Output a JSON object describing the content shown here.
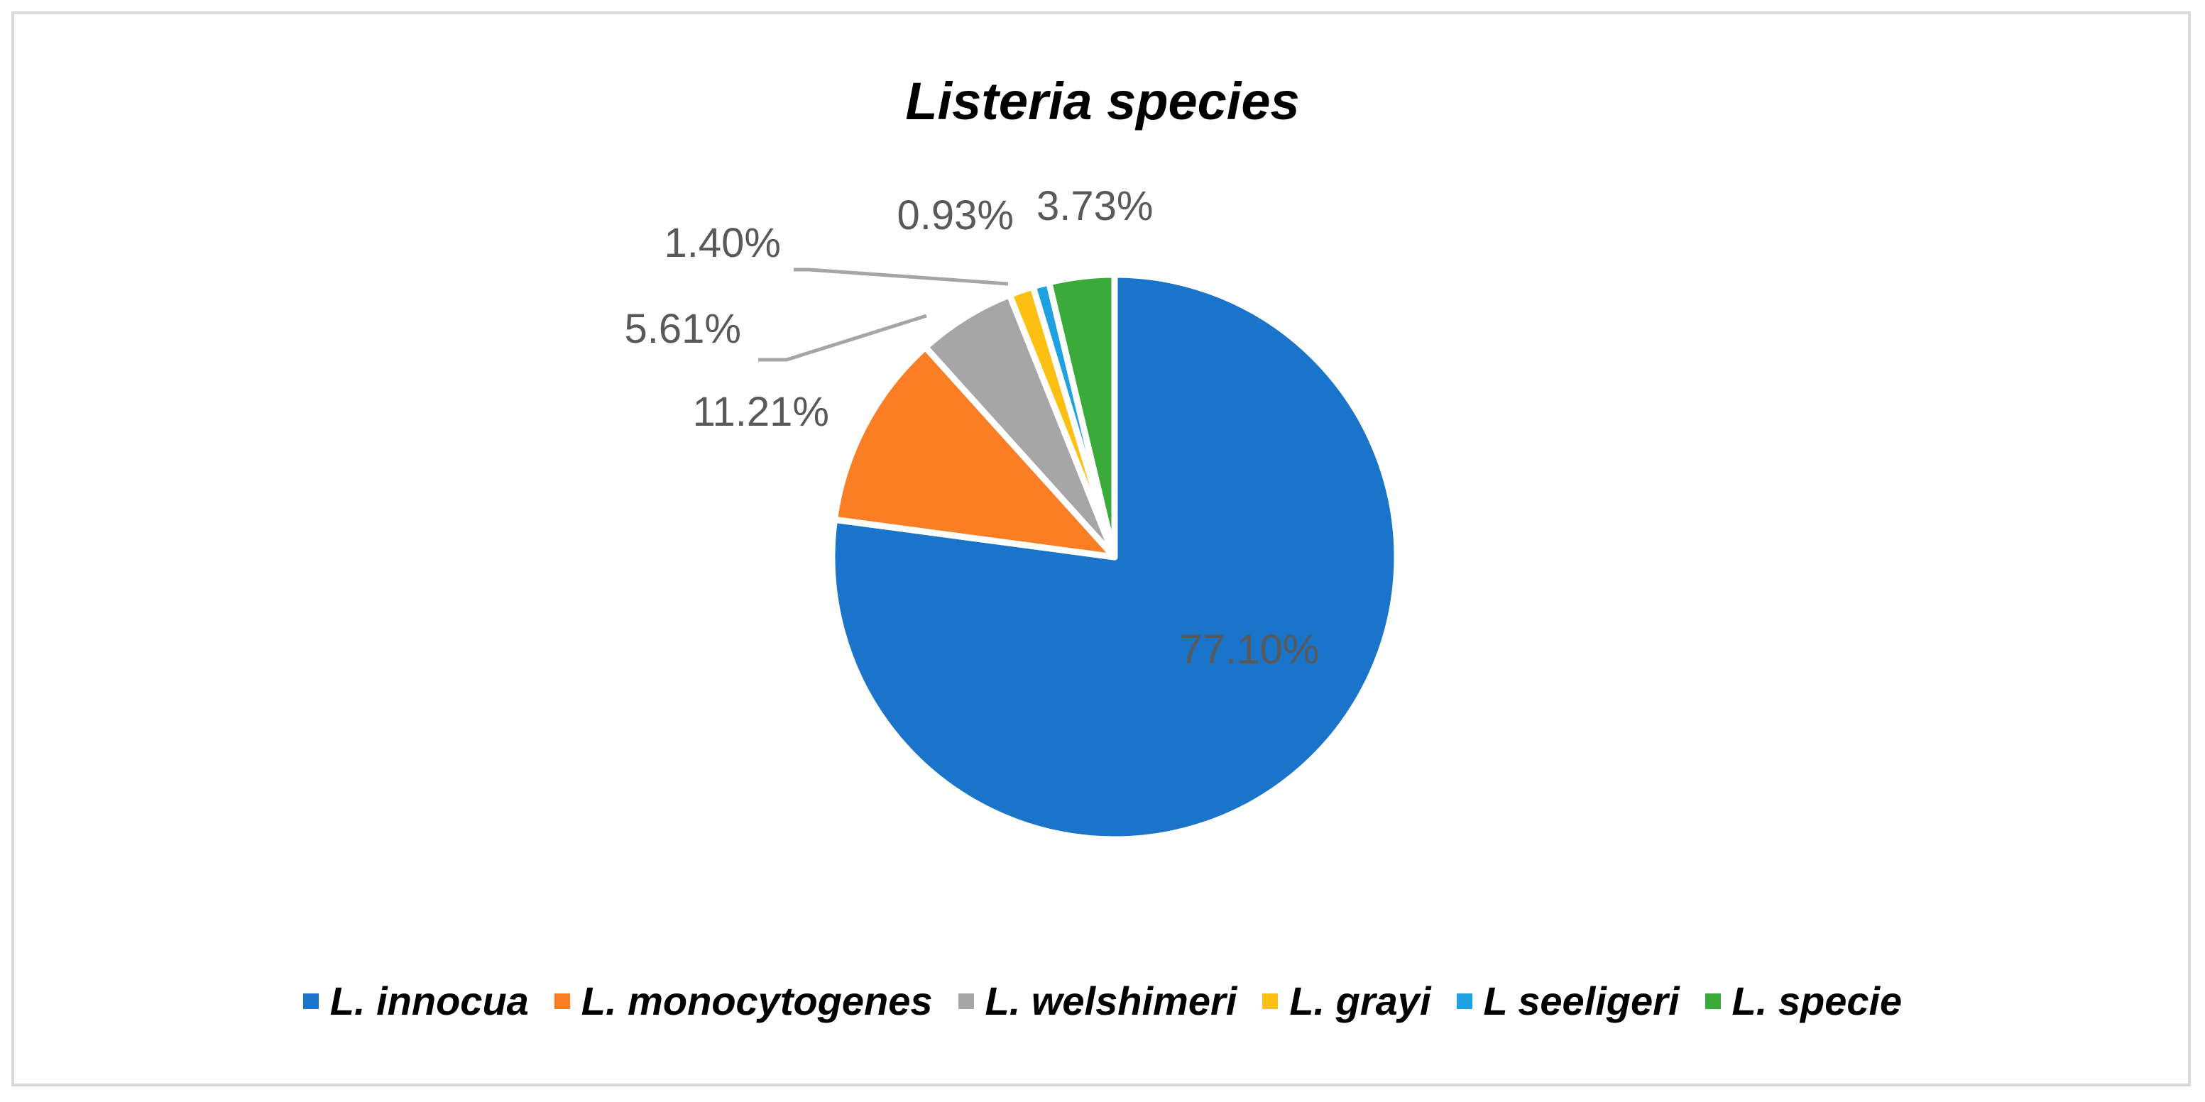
{
  "chart_data": {
    "type": "pie",
    "title": "Listeria species",
    "slices": [
      {
        "name": "L. innocua",
        "value": 77.1,
        "label": "77.10%",
        "color": "#1a74c9"
      },
      {
        "name": "L. monocytogenes",
        "value": 11.21,
        "label": "11.21%",
        "color": "#fb7d24"
      },
      {
        "name": "L. welshimeri",
        "value": 5.61,
        "label": "5.61%",
        "color": "#a6a6a6"
      },
      {
        "name": "L. grayi",
        "value": 1.4,
        "label": "1.40%",
        "color": "#fdc012"
      },
      {
        "name": "L seeligeri",
        "value": 0.93,
        "label": "0.93%",
        "color": "#1fa0e0"
      },
      {
        "name": "L. specie",
        "value": 3.73,
        "label": "3.73%",
        "color": "#3aaa3a"
      }
    ],
    "legend_position": "bottom",
    "label_color": "#595959"
  }
}
